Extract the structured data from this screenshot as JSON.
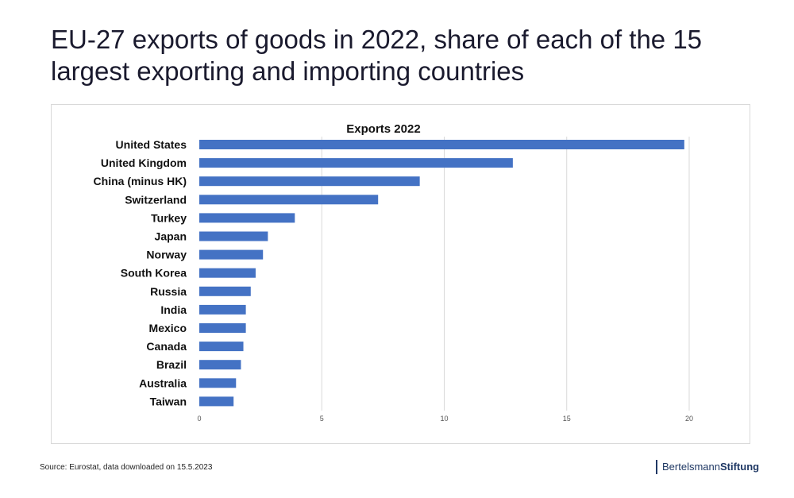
{
  "title": "EU-27  exports of goods in 2022, share of each of the 15 largest exporting and importing countries",
  "source": "Source: Eurostat, data downloaded on 15.5.2023",
  "logo": {
    "part1": "Bertelsmann",
    "part2": "Stiftung"
  },
  "colors": {
    "bar": "#4472c4",
    "grid": "#d9d9d9"
  },
  "chart_data": {
    "type": "bar",
    "orientation": "horizontal",
    "title": "Exports 2022",
    "categories": [
      "United States",
      "United Kingdom",
      "China (minus HK)",
      "Switzerland",
      "Turkey",
      "Japan",
      "Norway",
      "South Korea",
      "Russia",
      "India",
      "Mexico",
      "Canada",
      "Brazil",
      "Australia",
      "Taiwan"
    ],
    "values": [
      19.8,
      12.8,
      9.0,
      7.3,
      3.9,
      2.8,
      2.6,
      2.3,
      2.1,
      1.9,
      1.9,
      1.8,
      1.7,
      1.5,
      1.4
    ],
    "xlim": [
      0,
      20
    ],
    "xticks": [
      0,
      5,
      10,
      15,
      20
    ],
    "grid": "vertical",
    "legend": "none"
  }
}
